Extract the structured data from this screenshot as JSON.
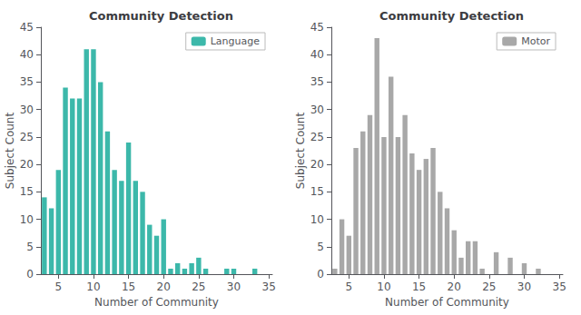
{
  "chart_data": [
    {
      "type": "bar",
      "title": "Community Detection",
      "xlabel": "Number of Community",
      "ylabel": "Subject Count",
      "x": [
        3,
        4,
        5,
        6,
        7,
        8,
        9,
        10,
        11,
        12,
        13,
        14,
        15,
        16,
        17,
        18,
        19,
        20,
        21,
        22,
        23,
        24,
        25,
        26,
        27,
        28,
        29,
        30,
        31,
        32,
        33
      ],
      "series": [
        {
          "name": "Language",
          "color": "#3cb8aa",
          "values": [
            14,
            12,
            19,
            34,
            32,
            32,
            41,
            41,
            35,
            26,
            19,
            17,
            24,
            17,
            15,
            9,
            7,
            10,
            1,
            2,
            1,
            2,
            3,
            1,
            0,
            0,
            1,
            1,
            0,
            0,
            1
          ]
        }
      ],
      "xlim": [
        2.5,
        35.5
      ],
      "xticks": [
        5,
        10,
        15,
        20,
        25,
        30,
        35
      ],
      "ylim": [
        0,
        45
      ],
      "yticks": [
        0,
        5,
        10,
        15,
        20,
        25,
        30,
        35,
        40,
        45
      ],
      "legend": "upper right",
      "grid": false
    },
    {
      "type": "bar",
      "title": "Community Detection",
      "xlabel": "Number of Community",
      "ylabel": "Subject Count",
      "x": [
        3,
        4,
        5,
        6,
        7,
        8,
        9,
        10,
        11,
        12,
        13,
        14,
        15,
        16,
        17,
        18,
        19,
        20,
        21,
        22,
        23,
        24,
        25,
        26,
        27,
        28,
        29,
        30,
        31,
        32
      ],
      "series": [
        {
          "name": "Motor",
          "color": "#a8a8a8",
          "values": [
            1,
            10,
            7,
            23,
            26,
            29,
            43,
            25,
            36,
            25,
            29,
            22,
            19,
            21,
            23,
            15,
            12,
            8,
            3,
            6,
            6,
            1,
            0,
            4,
            0,
            3,
            0,
            2,
            0,
            1
          ]
        }
      ],
      "xlim": [
        2.5,
        35.5
      ],
      "xticks": [
        5,
        10,
        15,
        20,
        25,
        30,
        35
      ],
      "ylim": [
        0,
        45
      ],
      "yticks": [
        0,
        5,
        10,
        15,
        20,
        25,
        30,
        35,
        40,
        45
      ],
      "legend": "upper right",
      "grid": false
    }
  ]
}
